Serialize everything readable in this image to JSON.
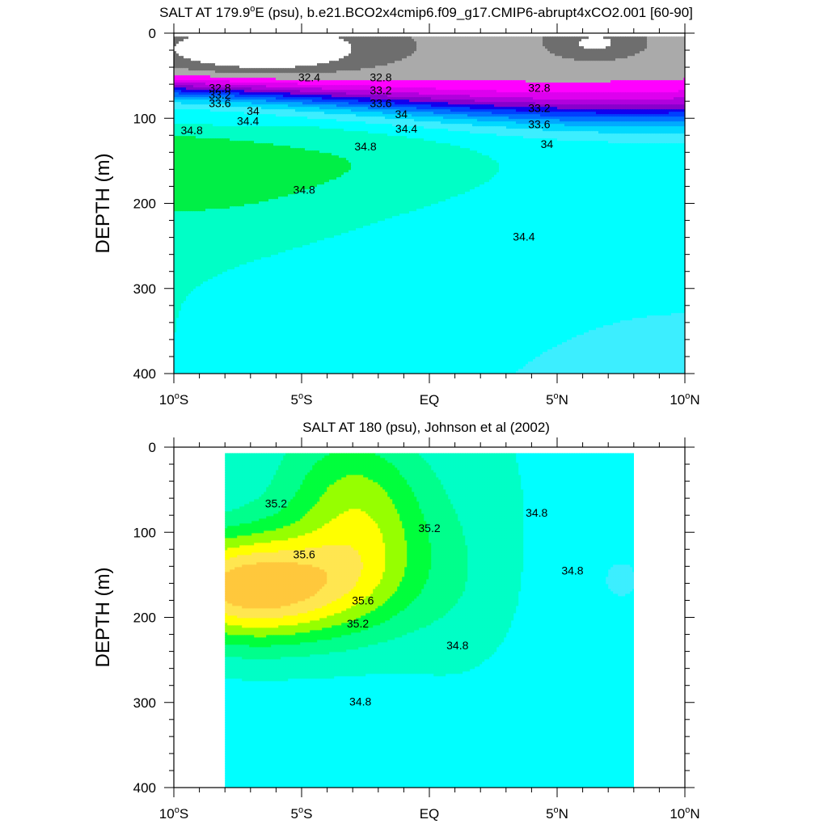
{
  "chart_data": [
    {
      "type": "heatmap",
      "title": "SALT AT 179.9°E (psu), b.e21.BCO2x4cmip6.f09_g17.CMIP6-abrupt4xCO2.001 [60-90]",
      "title_parts": [
        "SALT AT 179.9",
        "o",
        "E (psu), b.e21.BCO2x4cmip6.f09_g17.CMIP6-abrupt4xCO2.001 [60-90]"
      ],
      "ylabel": "DEPTH (m)",
      "xlabel": "",
      "xlim": [
        -10,
        10
      ],
      "ylim": [
        400,
        0
      ],
      "x_ticks": [
        {
          "value": -10,
          "num": "10",
          "hem": "S"
        },
        {
          "value": -5,
          "num": "5",
          "hem": "S"
        },
        {
          "value": 0,
          "num": "EQ",
          "hem": ""
        },
        {
          "value": 5,
          "num": "5",
          "hem": "N"
        },
        {
          "value": 10,
          "num": "10",
          "hem": "N"
        }
      ],
      "y_ticks": [
        "0",
        "100",
        "200",
        "300",
        "400"
      ],
      "y_tick_values": [
        0,
        100,
        200,
        300,
        400
      ],
      "fill_levels": [
        {
          "min": 34.8,
          "max": 35.0,
          "color": "#00ef46"
        },
        {
          "min": 34.6,
          "max": 34.8,
          "color": "#00ffc6"
        },
        {
          "min": 34.4,
          "max": 34.6,
          "color": "#00ffff"
        },
        {
          "min": 34.2,
          "max": 34.4,
          "color": "#3ceeff"
        },
        {
          "min": 34.0,
          "max": 34.2,
          "color": "#00d9ff"
        },
        {
          "min": 33.8,
          "max": 34.0,
          "color": "#00aaff"
        },
        {
          "min": 33.6,
          "max": 33.8,
          "color": "#0073ff"
        },
        {
          "min": 33.4,
          "max": 33.6,
          "color": "#0040ff"
        },
        {
          "min": 33.2,
          "max": 33.4,
          "color": "#1200ee"
        },
        {
          "min": 33.0,
          "max": 33.2,
          "color": "#8800cc"
        },
        {
          "min": 32.8,
          "max": 33.0,
          "color": "#b000dd"
        },
        {
          "min": 32.6,
          "max": 32.8,
          "color": "#dd00ee"
        },
        {
          "min": 32.4,
          "max": 32.6,
          "color": "#ff00ff"
        },
        {
          "min": 32.2,
          "max": 32.4,
          "color": "#aaaaaa"
        },
        {
          "min": 32.0,
          "max": 32.2,
          "color": "#6e6e6e"
        },
        {
          "min": 0,
          "max": 32.0,
          "color": "#ffffff"
        }
      ],
      "contour_labels": [
        {
          "text": "32.4",
          "x": -4.7,
          "y": 52
        },
        {
          "text": "32.8",
          "x": -8.2,
          "y": 64
        },
        {
          "text": "33.2",
          "x": -8.2,
          "y": 72
        },
        {
          "text": "33.6",
          "x": -8.2,
          "y": 82
        },
        {
          "text": "34",
          "x": -6.9,
          "y": 91
        },
        {
          "text": "34.4",
          "x": -7.1,
          "y": 103
        },
        {
          "text": "34.8",
          "x": -9.3,
          "y": 114
        },
        {
          "text": "32.8",
          "x": -1.9,
          "y": 52
        },
        {
          "text": "33.2",
          "x": -1.9,
          "y": 67
        },
        {
          "text": "33.6",
          "x": -1.9,
          "y": 82
        },
        {
          "text": "34",
          "x": -1.1,
          "y": 95
        },
        {
          "text": "34.4",
          "x": -0.9,
          "y": 112
        },
        {
          "text": "34.8",
          "x": -2.5,
          "y": 133
        },
        {
          "text": "34.8",
          "x": -4.9,
          "y": 184
        },
        {
          "text": "34.4",
          "x": 3.7,
          "y": 239
        },
        {
          "text": "32.8",
          "x": 4.3,
          "y": 64
        },
        {
          "text": "33.2",
          "x": 4.3,
          "y": 88
        },
        {
          "text": "33.6",
          "x": 4.3,
          "y": 107
        },
        {
          "text": "34",
          "x": 4.6,
          "y": 130
        }
      ]
    },
    {
      "type": "heatmap",
      "title": "SALT AT 180 (psu), Johnson et al (2002)",
      "ylabel": "DEPTH (m)",
      "xlabel": "",
      "xlim": [
        -10,
        10
      ],
      "ylim": [
        400,
        0
      ],
      "data_xrange": [
        -8,
        8
      ],
      "x_ticks": [
        {
          "value": -10,
          "num": "10",
          "hem": "S"
        },
        {
          "value": -5,
          "num": "5",
          "hem": "S"
        },
        {
          "value": 0,
          "num": "EQ",
          "hem": ""
        },
        {
          "value": 5,
          "num": "5",
          "hem": "N"
        },
        {
          "value": 10,
          "num": "10",
          "hem": "N"
        }
      ],
      "y_ticks": [
        "0",
        "100",
        "200",
        "300",
        "400"
      ],
      "y_tick_values": [
        0,
        100,
        200,
        300,
        400
      ],
      "fill_levels": [
        {
          "min": 35.8,
          "max": 36.0,
          "color": "#ffc83c"
        },
        {
          "min": 35.6,
          "max": 35.8,
          "color": "#ffe650"
        },
        {
          "min": 35.4,
          "max": 35.6,
          "color": "#ffff00"
        },
        {
          "min": 35.2,
          "max": 35.4,
          "color": "#96ff00"
        },
        {
          "min": 35.0,
          "max": 35.2,
          "color": "#00ff3c"
        },
        {
          "min": 34.8,
          "max": 35.0,
          "color": "#00ff8c"
        },
        {
          "min": 34.6,
          "max": 34.8,
          "color": "#00ffc6"
        },
        {
          "min": 34.4,
          "max": 34.6,
          "color": "#00ffff"
        },
        {
          "min": 0,
          "max": 34.4,
          "color": "#3ceeff"
        }
      ],
      "contour_labels": [
        {
          "text": "35.2",
          "x": -6.0,
          "y": 66
        },
        {
          "text": "35.6",
          "x": -4.9,
          "y": 126
        },
        {
          "text": "35.6",
          "x": -2.6,
          "y": 180
        },
        {
          "text": "35.2",
          "x": -2.8,
          "y": 207
        },
        {
          "text": "35.2",
          "x": 0.0,
          "y": 95
        },
        {
          "text": "34.8",
          "x": 4.2,
          "y": 77
        },
        {
          "text": "34.8",
          "x": 5.6,
          "y": 145
        },
        {
          "text": "34.8",
          "x": 1.1,
          "y": 233
        },
        {
          "text": "34.8",
          "x": -2.7,
          "y": 299
        }
      ]
    }
  ]
}
